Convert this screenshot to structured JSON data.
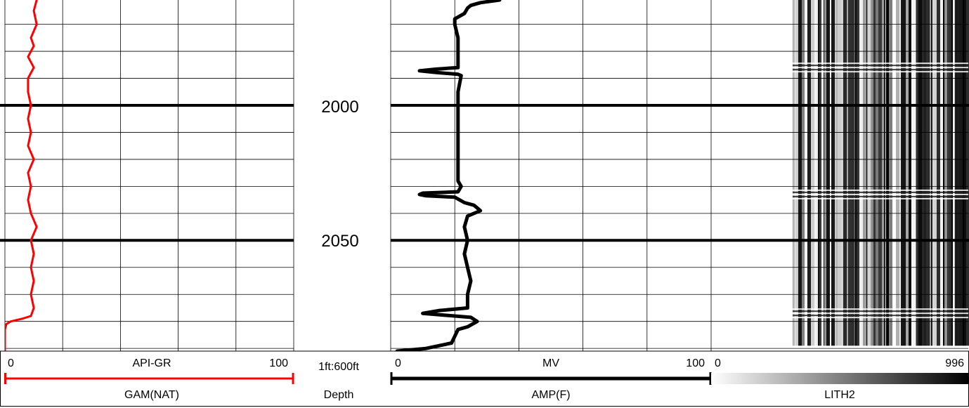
{
  "chart_data": {
    "type": "line",
    "title": "",
    "depth_track": {
      "name": "Depth",
      "scale_label": "1ft:600ft",
      "depth_labels": [
        "2000",
        "2050"
      ],
      "depth_range": [
        1961,
        2091
      ],
      "major_ticks": [
        2000,
        2050
      ],
      "minor_step": 10
    },
    "tracks": [
      {
        "id": "gam",
        "curve": "GAM(NAT)",
        "unit": "API-GR",
        "min_label": "0",
        "max_label": "100",
        "range": [
          0,
          100
        ],
        "color": "#ff0000",
        "grid_divisions": 5,
        "points": [
          [
            1961,
            11
          ],
          [
            1965,
            10
          ],
          [
            1970,
            11
          ],
          [
            1975,
            9
          ],
          [
            1978,
            10
          ],
          [
            1982,
            8
          ],
          [
            1986,
            10
          ],
          [
            1990,
            8
          ],
          [
            1995,
            8
          ],
          [
            2000,
            9
          ],
          [
            2005,
            8
          ],
          [
            2010,
            9
          ],
          [
            2015,
            8
          ],
          [
            2020,
            10
          ],
          [
            2025,
            8
          ],
          [
            2030,
            9
          ],
          [
            2035,
            8
          ],
          [
            2040,
            9
          ],
          [
            2045,
            11
          ],
          [
            2050,
            9
          ],
          [
            2055,
            10
          ],
          [
            2060,
            9
          ],
          [
            2065,
            10
          ],
          [
            2070,
            9
          ],
          [
            2075,
            10
          ],
          [
            2078,
            9
          ],
          [
            2079,
            6
          ],
          [
            2080,
            2
          ],
          [
            2081,
            0.5
          ],
          [
            2083,
            0
          ],
          [
            2091,
            0
          ]
        ]
      },
      {
        "id": "amp",
        "curve": "AMP(F)",
        "unit": "MV",
        "min_label": "0",
        "max_label": "100",
        "range": [
          0,
          100
        ],
        "color": "#000000",
        "grid_divisions": 5,
        "points": [
          [
            1961,
            34
          ],
          [
            1962,
            28
          ],
          [
            1963,
            25
          ],
          [
            1964,
            24
          ],
          [
            1966,
            23
          ],
          [
            1968,
            20
          ],
          [
            1970,
            20
          ],
          [
            1975,
            21
          ],
          [
            1978,
            21
          ],
          [
            1986,
            21
          ],
          [
            1986.6,
            14
          ],
          [
            1987.2,
            9
          ],
          [
            1987.8,
            14
          ],
          [
            1988.5,
            21
          ],
          [
            1989,
            22
          ],
          [
            1995,
            21
          ],
          [
            2000,
            21
          ],
          [
            2010,
            21
          ],
          [
            2020,
            21
          ],
          [
            2028,
            21
          ],
          [
            2030,
            22
          ],
          [
            2032,
            21
          ],
          [
            2032.5,
            10
          ],
          [
            2033,
            9
          ],
          [
            2033.5,
            11
          ],
          [
            2034,
            20
          ],
          [
            2036,
            23
          ],
          [
            2037,
            26
          ],
          [
            2039,
            28
          ],
          [
            2041,
            24
          ],
          [
            2045,
            23
          ],
          [
            2050,
            24
          ],
          [
            2055,
            23
          ],
          [
            2060,
            24
          ],
          [
            2065,
            25
          ],
          [
            2070,
            24
          ],
          [
            2075,
            24
          ],
          [
            2076,
            15
          ],
          [
            2077,
            10
          ],
          [
            2077.6,
            16
          ],
          [
            2078.5,
            25
          ],
          [
            2080,
            27
          ],
          [
            2082,
            24
          ],
          [
            2083,
            21
          ],
          [
            2088,
            19
          ],
          [
            2090,
            11
          ],
          [
            2091,
            2
          ]
        ]
      },
      {
        "id": "lith2",
        "curve": "LITH2",
        "min_label": "0",
        "max_label": "996",
        "range": [
          0,
          996
        ],
        "color_scale": [
          "#ffffff",
          "#000000"
        ],
        "display": "variable-density image",
        "bright_bands_depth": [
          1986,
          2033,
          2077
        ]
      }
    ]
  }
}
